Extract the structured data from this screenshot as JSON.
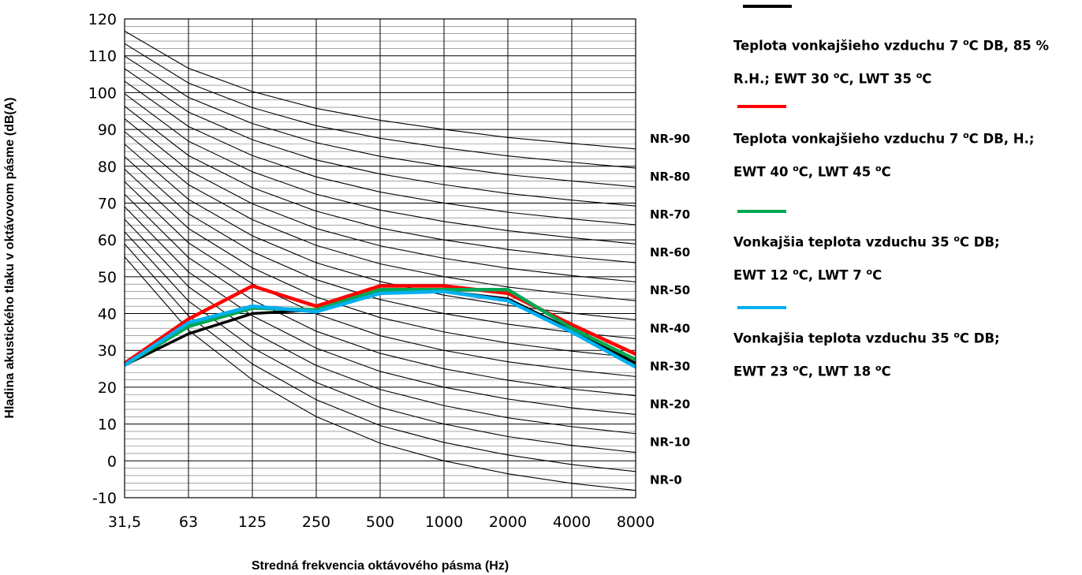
{
  "chart_data": {
    "type": "line",
    "title": "",
    "xlabel": "Stredná frekvencia oktávového pásma (Hz)",
    "ylabel": "Hladina akustického tlaku v oktávovom pásme (dB(A)",
    "categories": [
      "31,5",
      "63",
      "125",
      "250",
      "500",
      "1000",
      "2000",
      "4000",
      "8000"
    ],
    "y_ticks": [
      "-10",
      "0",
      "10",
      "20",
      "30",
      "40",
      "50",
      "60",
      "70",
      "80",
      "90",
      "100",
      "110",
      "120"
    ],
    "ylim": [
      -10,
      120
    ],
    "minor_grid_step": 2,
    "grid": true,
    "legend_position": "right",
    "nr_curves": [
      {
        "label": "NR-0",
        "values": [
          55.4,
          35.5,
          22.0,
          12.0,
          4.8,
          0.0,
          -3.5,
          -6.1,
          -8.0
        ]
      },
      {
        "label": "",
        "values": [
          58.9,
          39.4,
          26.3,
          16.6,
          9.6,
          5.0,
          1.6,
          -1.0,
          -2.9
        ]
      },
      {
        "label": "NR-10",
        "values": [
          62.2,
          43.4,
          30.7,
          21.3,
          14.5,
          10.0,
          6.6,
          4.2,
          2.3
        ]
      },
      {
        "label": "",
        "values": [
          65.6,
          47.3,
          35.0,
          25.9,
          19.4,
          15.0,
          11.7,
          9.3,
          7.4
        ]
      },
      {
        "label": "NR-20",
        "values": [
          69.0,
          51.3,
          39.4,
          30.6,
          24.3,
          20.0,
          16.8,
          14.4,
          12.6
        ]
      },
      {
        "label": "",
        "values": [
          72.4,
          55.2,
          43.7,
          35.2,
          29.2,
          25.0,
          21.9,
          19.5,
          17.7
        ]
      },
      {
        "label": "NR-30",
        "values": [
          75.8,
          59.2,
          48.1,
          39.9,
          34.0,
          30.0,
          26.9,
          24.7,
          22.9
        ]
      },
      {
        "label": "",
        "values": [
          79.2,
          63.1,
          52.4,
          44.5,
          38.9,
          35.0,
          32.0,
          29.8,
          28.0
        ]
      },
      {
        "label": "NR-40",
        "values": [
          82.6,
          67.1,
          56.8,
          49.2,
          43.8,
          40.0,
          37.1,
          34.9,
          33.2
        ]
      },
      {
        "label": "",
        "values": [
          86.0,
          71.0,
          61.1,
          53.8,
          48.7,
          45.0,
          42.2,
          40.1,
          38.3
        ]
      },
      {
        "label": "NR-50",
        "values": [
          89.4,
          75.0,
          65.5,
          58.5,
          53.5,
          50.0,
          47.2,
          45.2,
          43.5
        ]
      },
      {
        "label": "",
        "values": [
          92.9,
          78.9,
          69.8,
          63.1,
          58.4,
          55.0,
          52.3,
          50.3,
          48.6
        ]
      },
      {
        "label": "NR-60",
        "values": [
          96.3,
          82.9,
          74.2,
          67.8,
          63.2,
          60.0,
          57.4,
          55.4,
          53.8
        ]
      },
      {
        "label": "",
        "values": [
          99.7,
          86.8,
          78.5,
          72.4,
          68.1,
          65.0,
          62.5,
          60.6,
          58.9
        ]
      },
      {
        "label": "NR-70",
        "values": [
          103.1,
          90.8,
          82.9,
          77.1,
          73.0,
          70.0,
          67.5,
          65.7,
          64.1
        ]
      },
      {
        "label": "",
        "values": [
          106.5,
          94.7,
          87.2,
          81.7,
          77.9,
          75.0,
          72.6,
          70.8,
          69.2
        ]
      },
      {
        "label": "NR-80",
        "values": [
          109.9,
          98.7,
          91.6,
          86.4,
          82.7,
          80.0,
          77.7,
          76.0,
          74.4
        ]
      },
      {
        "label": "",
        "values": [
          113.3,
          102.6,
          95.9,
          91.0,
          87.6,
          85.0,
          82.8,
          81.1,
          79.5
        ]
      },
      {
        "label": "NR-90",
        "values": [
          116.7,
          106.6,
          100.3,
          95.7,
          92.5,
          90.0,
          87.8,
          86.2,
          84.7
        ]
      }
    ],
    "series": [
      {
        "name": "Teplota vonkajšieho vzduchu 7 °C DB, 85 % R.H.; EWT 30 °C, LWT 35 °C",
        "color": "#000000",
        "values": [
          26.0,
          34.5,
          40.0,
          41.0,
          46.0,
          46.0,
          44.0,
          35.5,
          26.5
        ]
      },
      {
        "name": "Teplota vonkajšieho vzduchu 7 °C DB, H.; EWT 40 °C, LWT 45 °C",
        "color": "#ff0000",
        "values": [
          26.5,
          38.5,
          47.5,
          42.0,
          47.5,
          47.5,
          45.5,
          37.0,
          29.0
        ]
      },
      {
        "name": "Vonkajšia teplota vzduchu 35 °C DB; EWT 12 °C, LWT 7 °C",
        "color": "#00a651",
        "values": [
          26.0,
          36.5,
          41.5,
          41.0,
          46.5,
          46.5,
          46.5,
          36.0,
          27.5
        ]
      },
      {
        "name": "Vonkajšia teplota vzduchu 35 °C DB; EWT 23 °C, LWT 18 °C",
        "color": "#00b0f0",
        "values": [
          26.0,
          37.5,
          42.0,
          40.5,
          45.5,
          46.0,
          43.5,
          35.0,
          25.5
        ]
      }
    ]
  },
  "legend": [
    {
      "color": "#000000",
      "line1_pre": "Teplota vonkajšieho vzduchu 7 ",
      "line1_sup": "o",
      "line1_post": "C DB, 85 %",
      "line2_pre": "R.H.; EWT 30 ",
      "line2_sup1": "o",
      "line2_mid": "C, LWT 35 ",
      "line2_sup2": "o",
      "line2_post": "C"
    },
    {
      "color": "#ff0000",
      "line1_pre": "Teplota vonkajšieho vzduchu 7 ",
      "line1_sup": "o",
      "line1_post": "C DB, H.;",
      "line2_pre": "EWT 40 ",
      "line2_sup1": "o",
      "line2_mid": "C, LWT 45 ",
      "line2_sup2": "o",
      "line2_post": "C"
    },
    {
      "color": "#00a651",
      "line1_pre": "Vonkajšia teplota vzduchu 35 ",
      "line1_sup": "o",
      "line1_post": "C DB;",
      "line2_pre": "EWT 12 ",
      "line2_sup1": "o",
      "line2_mid": "C, LWT 7 ",
      "line2_sup2": "o",
      "line2_post": "C"
    },
    {
      "color": "#00b0f0",
      "line1_pre": "Vonkajšia teplota vzduchu 35 ",
      "line1_sup": "o",
      "line1_post": "C DB;",
      "line2_pre": "EWT 23 ",
      "line2_sup1": "o",
      "line2_mid": "C, LWT 18 ",
      "line2_sup2": "o",
      "line2_post": "C"
    }
  ]
}
